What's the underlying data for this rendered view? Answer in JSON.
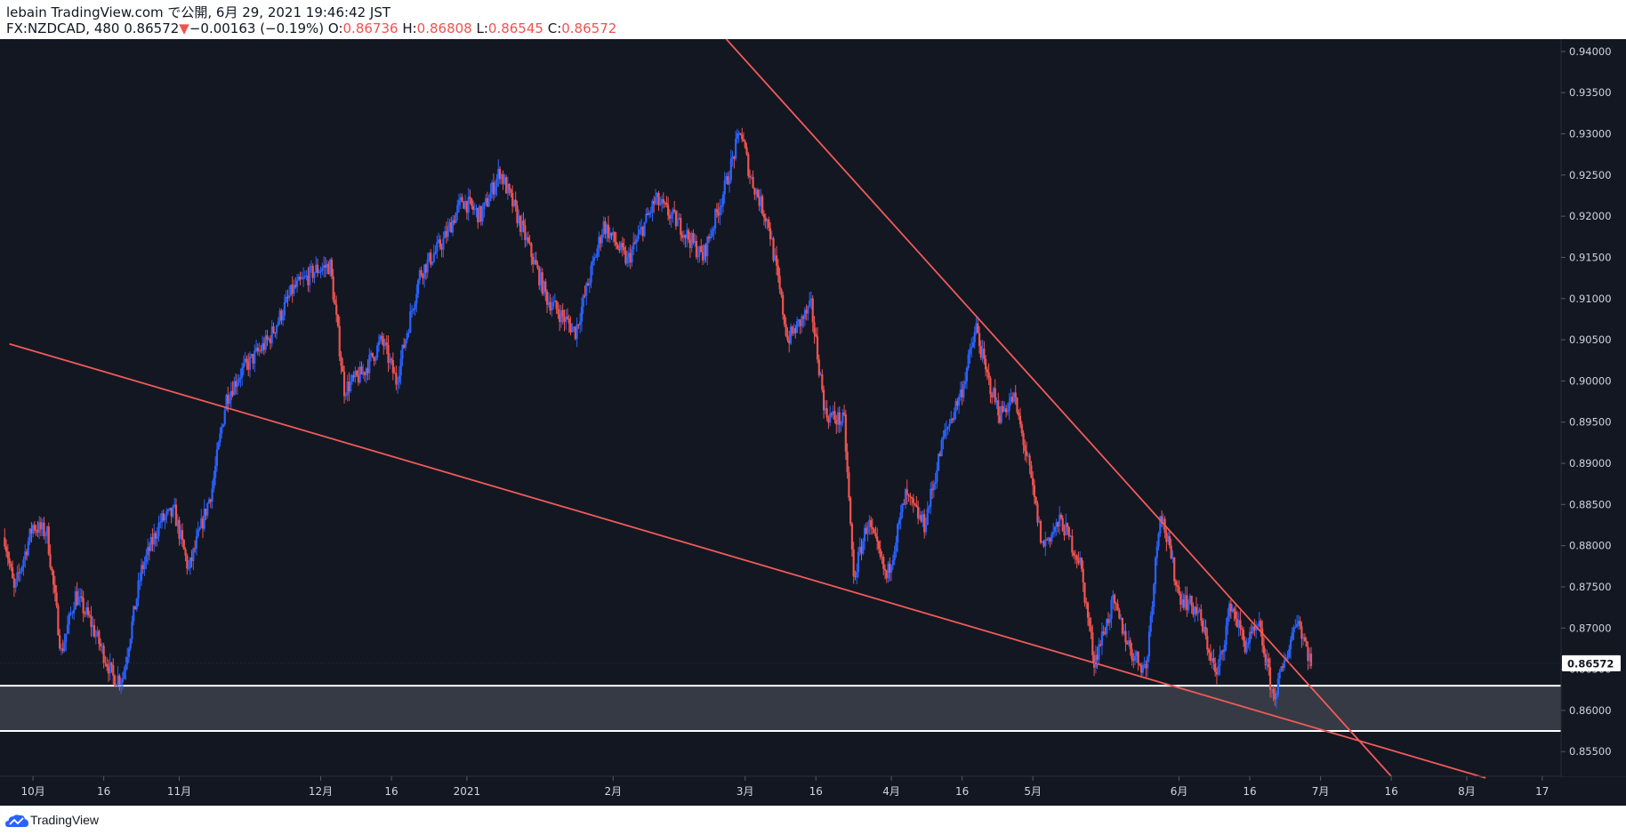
{
  "header": {
    "publisher": "lebain TradingView.com で公開, 6月 29, 2021 19:46:42 JST",
    "symbol": "FX:NZDCAD, 480",
    "last_price": "0.86572",
    "change_arrow": "▼",
    "change": "−0.00163 (−0.19%)",
    "open_label": "O:",
    "open": "0.86736",
    "high_label": "H:",
    "high": "0.86808",
    "low_label": "L:",
    "low": "0.86545",
    "close_label": "C:",
    "close": "0.86572"
  },
  "footer": {
    "brand": "TradingView",
    "logo_icon": "tradingview-cloud-icon"
  },
  "colors": {
    "background": "#131722",
    "up": "#2962ff",
    "down": "#ef5350",
    "trendline": "#f15a5a",
    "zone_fill": "#363a45",
    "zone_border": "#ffffff",
    "axis_text": "#d1d4dc",
    "price_badge": "#ffffff"
  },
  "chart_data": {
    "type": "candlestick",
    "symbol": "FX:NZDCAD",
    "interval": "480",
    "ylim": [
      0.852,
      0.9415
    ],
    "y_ticks": [
      "0.94000",
      "0.93500",
      "0.93000",
      "0.92500",
      "0.92000",
      "0.91500",
      "0.91000",
      "0.90500",
      "0.90000",
      "0.89500",
      "0.89000",
      "0.88500",
      "0.88000",
      "0.87500",
      "0.87000",
      "0.86500",
      "0.86000",
      "0.85500"
    ],
    "x_ticks": [
      {
        "label": "10月",
        "date": "2020-10-01"
      },
      {
        "label": "16",
        "date": "2020-10-16"
      },
      {
        "label": "11月",
        "date": "2020-11-01"
      },
      {
        "label": "12月",
        "date": "2020-12-01"
      },
      {
        "label": "16",
        "date": "2020-12-16"
      },
      {
        "label": "2021",
        "date": "2021-01-01"
      },
      {
        "label": "2月",
        "date": "2021-02-01"
      },
      {
        "label": "3月",
        "date": "2021-03-01"
      },
      {
        "label": "16",
        "date": "2021-03-16"
      },
      {
        "label": "4月",
        "date": "2021-04-01"
      },
      {
        "label": "16",
        "date": "2021-04-16"
      },
      {
        "label": "5月",
        "date": "2021-05-01"
      },
      {
        "label": "6月",
        "date": "2021-06-01"
      },
      {
        "label": "16",
        "date": "2021-06-16"
      },
      {
        "label": "7月",
        "date": "2021-07-01"
      },
      {
        "label": "16",
        "date": "2021-07-16"
      },
      {
        "label": "8月",
        "date": "2021-08-01"
      },
      {
        "label": "17",
        "date": "2021-08-17"
      }
    ],
    "last_price_label": "0.86572",
    "swing_points": [
      [
        "2020-09-25",
        0.881
      ],
      [
        "2020-09-27",
        0.8745
      ],
      [
        "2020-10-01",
        0.8825
      ],
      [
        "2020-10-04",
        0.8815
      ],
      [
        "2020-10-07",
        0.867
      ],
      [
        "2020-10-10",
        0.874
      ],
      [
        "2020-10-13",
        0.871
      ],
      [
        "2020-10-18",
        0.864
      ],
      [
        "2020-10-20",
        0.864
      ],
      [
        "2020-10-24",
        0.877
      ],
      [
        "2020-10-28",
        0.883
      ],
      [
        "2020-10-31",
        0.884
      ],
      [
        "2020-11-03",
        0.877
      ],
      [
        "2020-11-08",
        0.887
      ],
      [
        "2020-11-11",
        0.898
      ],
      [
        "2020-11-14",
        0.901
      ],
      [
        "2020-11-20",
        0.905
      ],
      [
        "2020-11-25",
        0.911
      ],
      [
        "2020-11-30",
        0.9135
      ],
      [
        "2020-12-03",
        0.914
      ],
      [
        "2020-12-06",
        0.899
      ],
      [
        "2020-12-10",
        0.901
      ],
      [
        "2020-12-14",
        0.905
      ],
      [
        "2020-12-17",
        0.9
      ],
      [
        "2020-12-22",
        0.913
      ],
      [
        "2020-12-27",
        0.917
      ],
      [
        "2020-12-31",
        0.922
      ],
      [
        "2021-01-04",
        0.92
      ],
      [
        "2021-01-08",
        0.9255
      ],
      [
        "2021-01-13",
        0.918
      ],
      [
        "2021-01-18",
        0.91
      ],
      [
        "2021-01-24",
        0.906
      ],
      [
        "2021-01-30",
        0.919
      ],
      [
        "2021-02-04",
        0.9145
      ],
      [
        "2021-02-10",
        0.922
      ],
      [
        "2021-02-15",
        0.919
      ],
      [
        "2021-02-20",
        0.915
      ],
      [
        "2021-02-25",
        0.924
      ],
      [
        "2021-02-28",
        0.9305
      ],
      [
        "2021-03-02",
        0.925
      ],
      [
        "2021-03-06",
        0.919
      ],
      [
        "2021-03-10",
        0.905
      ],
      [
        "2021-03-15",
        0.909
      ],
      [
        "2021-03-18",
        0.896
      ],
      [
        "2021-03-22",
        0.895
      ],
      [
        "2021-03-24",
        0.876
      ],
      [
        "2021-03-27",
        0.883
      ],
      [
        "2021-03-31",
        0.876
      ],
      [
        "2021-04-04",
        0.886
      ],
      [
        "2021-04-08",
        0.8825
      ],
      [
        "2021-04-12",
        0.893
      ],
      [
        "2021-04-16",
        0.899
      ],
      [
        "2021-04-19",
        0.9065
      ],
      [
        "2021-04-21",
        0.901
      ],
      [
        "2021-04-24",
        0.896
      ],
      [
        "2021-04-27",
        0.898
      ],
      [
        "2021-04-30",
        0.89
      ],
      [
        "2021-05-03",
        0.88
      ],
      [
        "2021-05-07",
        0.883
      ],
      [
        "2021-05-11",
        0.878
      ],
      [
        "2021-05-14",
        0.866
      ],
      [
        "2021-05-18",
        0.873
      ],
      [
        "2021-05-22",
        0.867
      ],
      [
        "2021-05-25",
        0.865
      ],
      [
        "2021-05-28",
        0.8845
      ],
      [
        "2021-06-01",
        0.874
      ],
      [
        "2021-06-05",
        0.872
      ],
      [
        "2021-06-09",
        0.864
      ],
      [
        "2021-06-12",
        0.873
      ],
      [
        "2021-06-15",
        0.868
      ],
      [
        "2021-06-18",
        0.87
      ],
      [
        "2021-06-21",
        0.8615
      ],
      [
        "2021-06-23",
        0.865
      ],
      [
        "2021-06-26",
        0.8715
      ],
      [
        "2021-06-29",
        0.8657
      ]
    ],
    "trendlines": [
      {
        "name": "",
        "from": [
          "2020-09-26",
          0.9045
        ],
        "to": [
          "2021-08-05",
          0.8518
        ]
      },
      {
        "name": "",
        "from": [
          "2021-02-25",
          0.9415
        ],
        "to": [
          "2021-07-16",
          0.852
        ]
      }
    ],
    "zones": [
      {
        "name": "",
        "top": 0.863,
        "bottom": 0.8575
      }
    ]
  }
}
